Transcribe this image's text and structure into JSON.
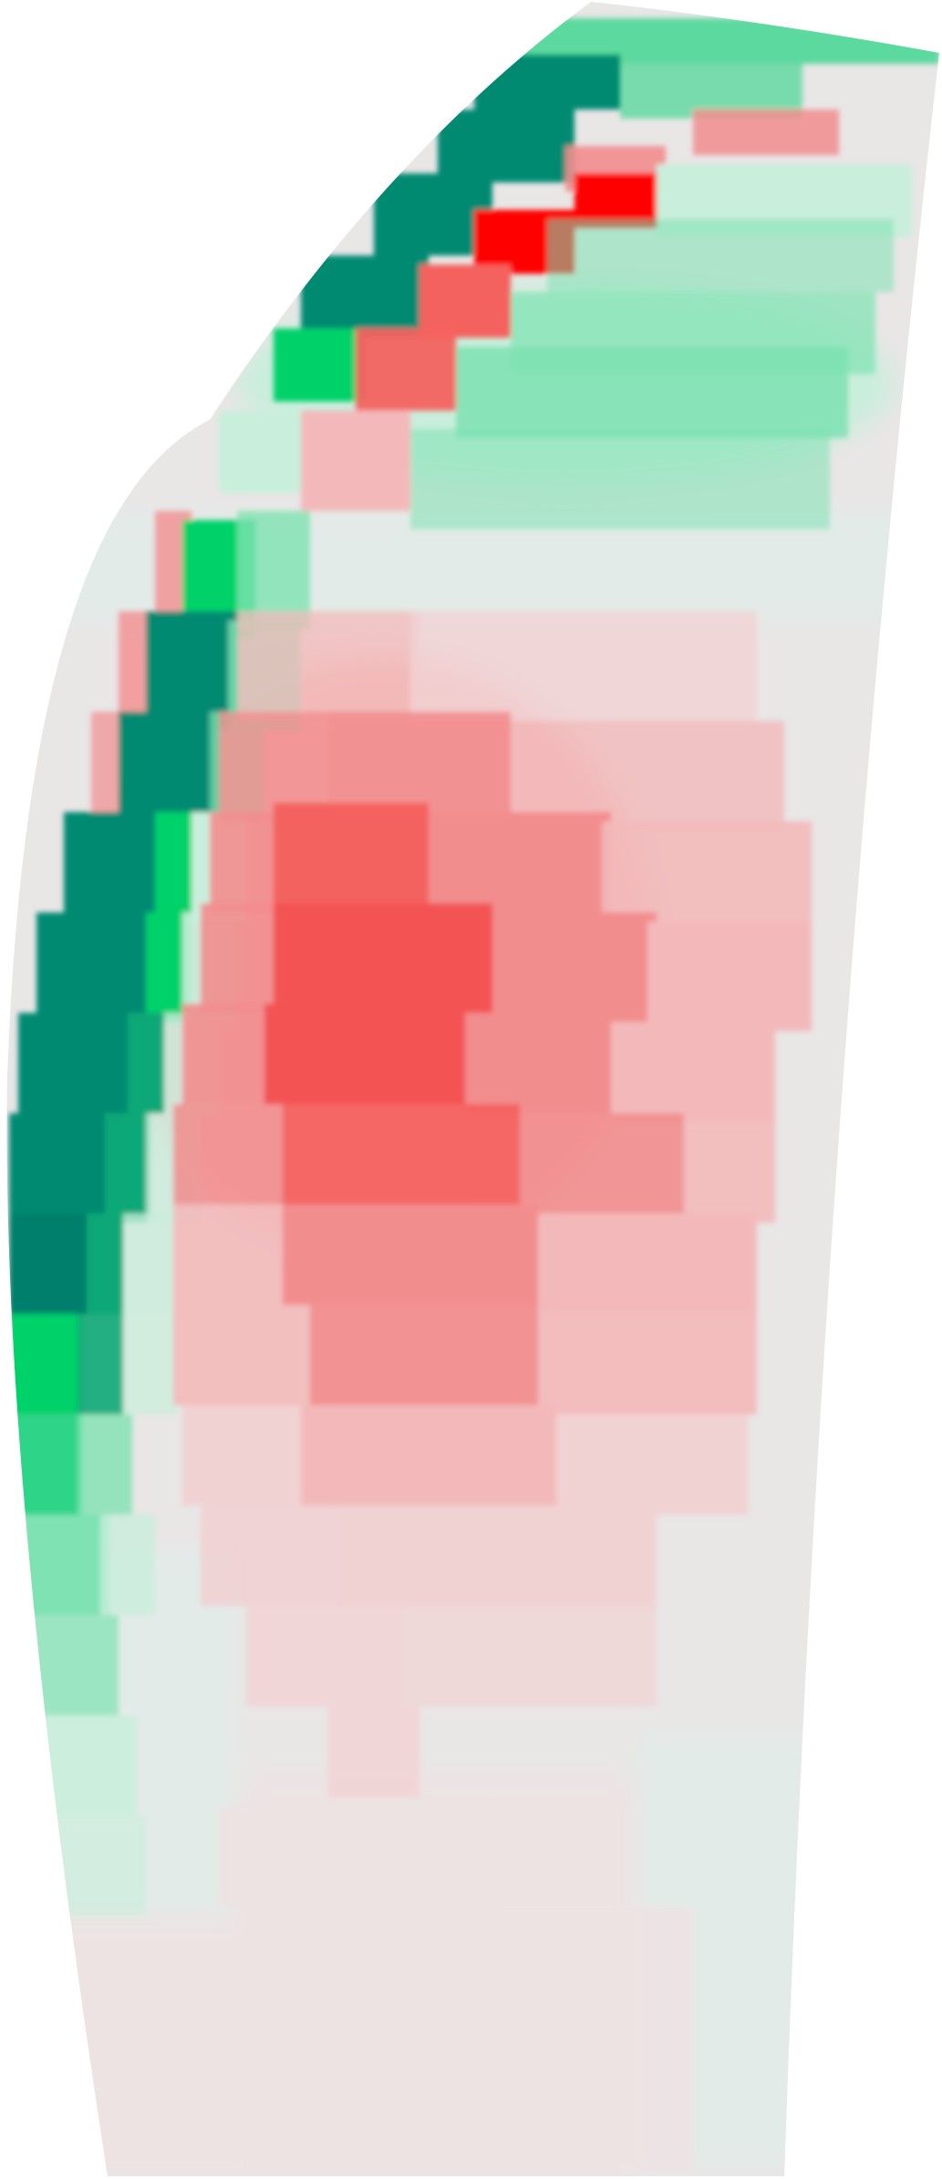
{
  "figure": {
    "kind": "blade-surface-heatmap",
    "colors": {
      "background": "#ffffff",
      "neutral": "#e9e6e6",
      "neutral_green": "#e2ebe8",
      "neutral_red": "#ede3e3",
      "green_pale": "#c9eedc",
      "green_light": "#7ee2b2",
      "green_mid": "#2fd487",
      "green_bright": "#00d26b",
      "green_dark": "#08a877",
      "teal": "#008a72",
      "teal_deep": "#00806c",
      "red_pale": "#f1d2d3",
      "red_light": "#f3b9ba",
      "red_mid": "#f28d8e",
      "red_strong": "#f4625f",
      "red_vivid": "#f35252",
      "red_pure": "#ff0000"
    }
  }
}
